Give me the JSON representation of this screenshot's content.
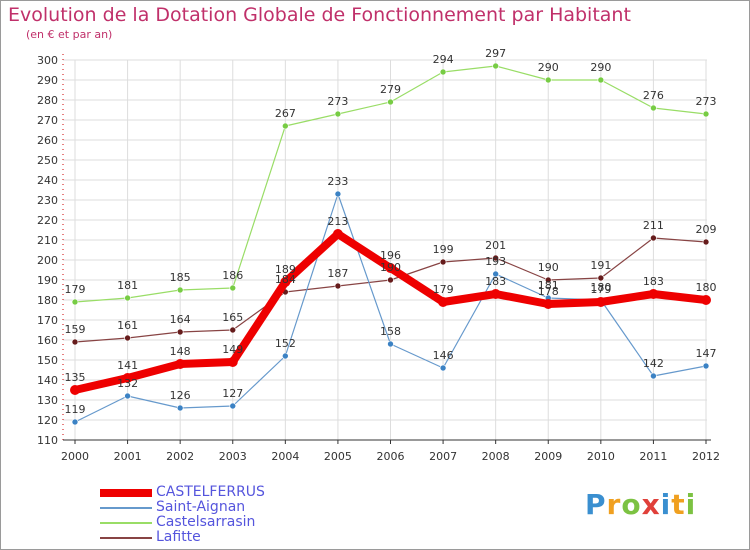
{
  "title": "Evolution de la Dotation Globale de Fonctionnement par Habitant",
  "subtitle": "(en € et par an)",
  "brand": "Proxiti",
  "colors": {
    "title": "#c0306a",
    "axis": "#cc0000",
    "grid": "#dddddd",
    "legend_text": "#5555dd"
  },
  "chart_data": {
    "type": "line",
    "title": "Evolution de la Dotation Globale de Fonctionnement par Habitant",
    "subtitle": "(en € et par an)",
    "xlabel": "",
    "ylabel": "",
    "ylim": [
      110,
      300
    ],
    "yticks": [
      110,
      120,
      130,
      140,
      150,
      160,
      170,
      180,
      190,
      200,
      210,
      220,
      230,
      240,
      250,
      260,
      270,
      280,
      290,
      300
    ],
    "grid": true,
    "x": [
      "2000",
      "2001",
      "2002",
      "2003",
      "2004",
      "2005",
      "2006",
      "2007",
      "2008",
      "2009",
      "2010",
      "2011",
      "2012"
    ],
    "series": [
      {
        "name": "CASTELFERRUS",
        "color": "#ee0000",
        "marker": "#ee0000",
        "values": [
          135,
          141,
          148,
          149,
          189,
          213,
          196,
          179,
          183,
          178,
          179,
          183,
          180
        ],
        "labels": [
          "135",
          "141",
          "148",
          "149",
          "189",
          "213",
          "196",
          "179",
          "183",
          "178",
          "179",
          "183",
          "180"
        ]
      },
      {
        "name": "Saint-Aignan",
        "color": "#6699cc",
        "marker": "#3b82c4",
        "values": [
          119,
          132,
          126,
          127,
          152,
          233,
          158,
          146,
          193,
          181,
          180,
          142,
          147
        ],
        "labels": [
          "119",
          "132",
          "126",
          "127",
          "152",
          "233",
          "158",
          "146",
          "193",
          "181",
          "180",
          "142",
          "147"
        ]
      },
      {
        "name": "Castelsarrasin",
        "color": "#99dd66",
        "marker": "#77cc44",
        "values": [
          179,
          181,
          185,
          186,
          267,
          273,
          279,
          294,
          297,
          290,
          290,
          276,
          273
        ],
        "labels": [
          "179",
          "181",
          "185",
          "186",
          "267",
          "273",
          "279",
          "294",
          "297",
          "290",
          "290",
          "276",
          "273"
        ]
      },
      {
        "name": "Lafitte",
        "color": "#884444",
        "marker": "#661c1c",
        "values": [
          159,
          161,
          164,
          165,
          184,
          187,
          190,
          199,
          201,
          190,
          191,
          211,
          209
        ],
        "labels": [
          "159",
          "161",
          "164",
          "165",
          "184",
          "187",
          "190",
          "199",
          "201",
          "190",
          "191",
          "211",
          "209"
        ]
      }
    ],
    "legend": [
      "CASTELFERRUS",
      "Saint-Aignan",
      "Castelsarrasin",
      "Lafitte"
    ],
    "legend_position": "bottom-left"
  }
}
